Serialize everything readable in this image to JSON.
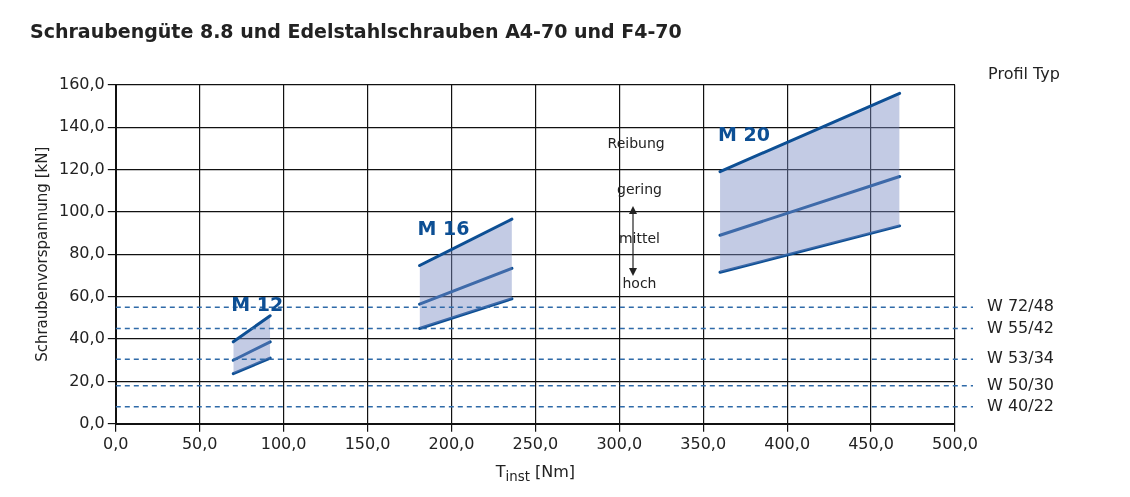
{
  "chart_data": {
    "type": "line",
    "title": "Schraubengüte 8.8 und Edelstahlschrauben A4-70 und F4-70",
    "xlabel": "T$_{inst}$ [Nm]",
    "ylabel": "Schraubenvorspannung [kN]",
    "annotations": [
      "Profil Typ",
      "Reibung",
      "gering",
      "mittel",
      "hoch"
    ],
    "xlim": [
      0,
      500
    ],
    "xticks": [
      {
        "value": 0,
        "label": "0,0"
      },
      {
        "value": 50,
        "label": "50,0"
      },
      {
        "value": 100,
        "label": "100,0"
      },
      {
        "value": 150,
        "label": "150,0"
      },
      {
        "value": 200,
        "label": "200,0"
      },
      {
        "value": 250,
        "label": "250,0"
      },
      {
        "value": 300,
        "label": "300,0"
      },
      {
        "value": 350,
        "label": "350,0"
      },
      {
        "value": 400,
        "label": "400,0"
      },
      {
        "value": 450,
        "label": "450,0"
      },
      {
        "value": 500,
        "label": "500,0"
      }
    ],
    "ylim": [
      0,
      160
    ],
    "yticks": [
      {
        "value": 0,
        "label": "0,0"
      },
      {
        "value": 20,
        "label": "20,0"
      },
      {
        "value": 40,
        "label": "40,0"
      },
      {
        "value": 60,
        "label": "60,0"
      },
      {
        "value": 80,
        "label": "80,0"
      },
      {
        "value": 100,
        "label": "100,0"
      },
      {
        "value": 120,
        "label": "120,0"
      },
      {
        "value": 140,
        "label": "140,0"
      },
      {
        "value": 160,
        "label": "160,0"
      }
    ],
    "grid": true,
    "legend": false,
    "series": [
      {
        "name": "M 12",
        "color": "#0d4f94",
        "x": [
          70,
          92
        ],
        "values": [
          38.7,
          51
        ]
      },
      {
        "color": "#0d4f94",
        "x": [
          70,
          92
        ],
        "values": [
          30,
          38.7
        ],
        "lower": [
          23.7,
          31
        ],
        "upper": [
          38.7,
          51
        ]
      },
      {
        "color": "#0d4f94",
        "x": [
          70,
          92
        ],
        "values": [
          23.7,
          31
        ]
      },
      {
        "name": "M 16",
        "color": "#0d4f94",
        "x": [
          181,
          236
        ],
        "values": [
          74.7,
          96.6
        ]
      },
      {
        "color": "#0d4f94",
        "x": [
          181,
          236
        ],
        "values": [
          56.5,
          73.4
        ],
        "lower": [
          45,
          59
        ],
        "upper": [
          74.7,
          96.6
        ]
      },
      {
        "color": "#0d4f94",
        "x": [
          181,
          236
        ],
        "values": [
          45,
          59
        ]
      },
      {
        "name": "M 20",
        "color": "#0d4f94",
        "x": [
          360,
          467
        ],
        "values": [
          119,
          156
        ]
      },
      {
        "color": "#0d4f94",
        "x": [
          360,
          467
        ],
        "values": [
          89,
          116.7
        ],
        "lower": [
          71.5,
          93.4
        ],
        "upper": [
          119,
          156
        ]
      },
      {
        "color": "#0d4f94",
        "x": [
          360,
          467
        ],
        "values": [
          71.5,
          93.4
        ]
      }
    ],
    "ref_lines": [
      {
        "axis": "y",
        "value": 55,
        "label": "W 72/48",
        "color": "#2f6aa8",
        "line_style": "dashed"
      },
      {
        "axis": "y",
        "value": 45,
        "label": "W 55/42",
        "color": "#2f6aa8",
        "line_style": "dashed"
      },
      {
        "axis": "y",
        "value": 30.5,
        "label": "W 53/34",
        "color": "#2f6aa8",
        "line_style": "dashed"
      },
      {
        "axis": "y",
        "value": 18,
        "label": "W 50/30",
        "color": "#2f6aa8",
        "line_style": "dashed"
      },
      {
        "axis": "y",
        "value": 8,
        "label": "W 40/22",
        "color": "#2f6aa8",
        "line_style": "dashed"
      }
    ]
  }
}
